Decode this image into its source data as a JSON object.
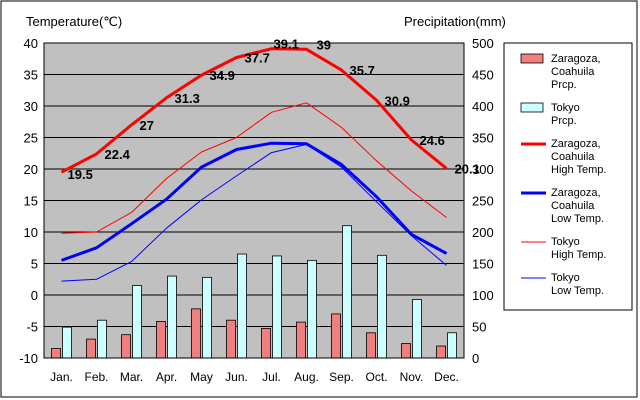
{
  "chart_data": {
    "type": "bar+line",
    "title": "",
    "left_axis_label": "Temperature(℃)",
    "right_axis_label": "Precipitation(mm)",
    "categories": [
      "Jan.",
      "Feb.",
      "Mar.",
      "Apr.",
      "May",
      "Jun.",
      "Jul.",
      "Aug.",
      "Sep.",
      "Oct.",
      "Nov.",
      "Dec."
    ],
    "temperature_ylim": [
      -10,
      40
    ],
    "temperature_ticks": [
      "40",
      "35",
      "30",
      "25",
      "20",
      "15",
      "10",
      "5",
      "0",
      "-5",
      "-10"
    ],
    "precipitation_ylim": [
      0,
      500
    ],
    "precipitation_ticks": [
      "500",
      "450",
      "400",
      "350",
      "300",
      "250",
      "200",
      "150",
      "100",
      "50",
      "0"
    ],
    "grid": true,
    "legend_position": "right",
    "bar_series": [
      {
        "name": "Zaragoza, Coahuila Prcp.",
        "legend_lines": [
          "Zaragoza,",
          "Coahuila",
          "Prcp."
        ],
        "color": "#f08080",
        "values": [
          15,
          30,
          37,
          58,
          78,
          60,
          47,
          57,
          70,
          40,
          23,
          19
        ]
      },
      {
        "name": "Tokyo Prcp.",
        "legend_lines": [
          "Tokyo",
          "Prcp."
        ],
        "color": "#ccffff",
        "values": [
          49,
          60,
          115,
          130,
          128,
          165,
          162,
          155,
          210,
          163,
          93,
          40
        ]
      }
    ],
    "line_series": [
      {
        "name": "Zaragoza, Coahuila High Temp.",
        "legend_lines": [
          "Zaragoza,",
          "Coahuila",
          "High Temp."
        ],
        "color": "#ff0000",
        "width": 3,
        "values": [
          19.5,
          22.4,
          27,
          31.3,
          34.9,
          37.7,
          39.1,
          39,
          35.7,
          30.9,
          24.6,
          20.1
        ]
      },
      {
        "name": "Zaragoza, Coahuila Low Temp.",
        "legend_lines": [
          "Zaragoza,",
          "Coahuila",
          "Low Temp."
        ],
        "color": "#0000ff",
        "width": 3,
        "values": [
          5.5,
          7.5,
          11.3,
          15.2,
          20.3,
          23.1,
          24.1,
          24.0,
          20.7,
          15.6,
          9.6,
          6.6
        ]
      },
      {
        "name": "Tokyo High Temp.",
        "legend_lines": [
          "Tokyo",
          "High Temp."
        ],
        "color": "#ff0000",
        "width": 1,
        "values": [
          9.8,
          10.0,
          13.1,
          18.5,
          22.7,
          25.0,
          29.0,
          30.5,
          26.6,
          21.3,
          16.5,
          12.3
        ]
      },
      {
        "name": "Tokyo Low Temp.",
        "legend_lines": [
          "Tokyo",
          "Low Temp."
        ],
        "color": "#0000ff",
        "width": 1,
        "values": [
          2.2,
          2.5,
          5.3,
          10.6,
          15.1,
          18.9,
          22.6,
          23.9,
          20.3,
          14.8,
          9.4,
          4.7
        ]
      }
    ],
    "data_labels": [
      "19.5",
      "22.4",
      "27",
      "31.3",
      "34.9",
      "37.7",
      "39.1",
      "39",
      "35.7",
      "30.9",
      "24.6",
      "20.1"
    ]
  }
}
